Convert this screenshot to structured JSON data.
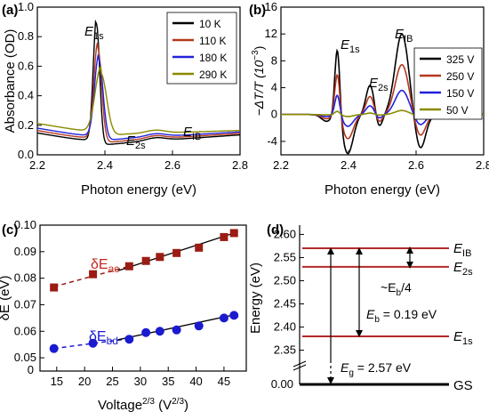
{
  "colors": {
    "c10K": "#000000",
    "c110K": "#b5381f",
    "c180K": "#2222dd",
    "c290K": "#8a8a00",
    "red": "#c2281c",
    "blue": "#1a1ad0",
    "darkred": "#9b1c14",
    "level": "#b32a2a"
  },
  "chart_data": [
    {
      "type": "line",
      "panel": "(a)",
      "xlabel": "Photon energy (eV)",
      "ylabel": "Absorbance (OD)",
      "xlim": [
        2.2,
        2.8
      ],
      "ylim": [
        0.0,
        1.0
      ],
      "xticks": [
        "2.2",
        "2.4",
        "2.6",
        "2.8"
      ],
      "yticks": [
        "0.0",
        "0.2",
        "0.4",
        "0.6",
        "0.8",
        "1.0"
      ],
      "legend_position": "top-right",
      "annotations": [
        {
          "main": "E",
          "sub": "1s"
        },
        {
          "main": "E",
          "sub": "2s"
        },
        {
          "main": "E",
          "sub": "IB"
        }
      ],
      "series": [
        {
          "name": "10 K",
          "peak": 0.95,
          "center": 2.375,
          "width": 0.0095,
          "low": 0.08,
          "high": 0.135
        },
        {
          "name": "110 K",
          "peak": 0.785,
          "center": 2.379,
          "width": 0.0115,
          "low": 0.095,
          "high": 0.145
        },
        {
          "name": "180 K",
          "peak": 0.705,
          "center": 2.382,
          "width": 0.0125,
          "low": 0.11,
          "high": 0.155
        },
        {
          "name": "290 K",
          "peak": 0.615,
          "center": 2.388,
          "width": 0.017,
          "low": 0.14,
          "high": 0.165
        }
      ]
    },
    {
      "type": "line",
      "panel": "(b)",
      "xlabel": "Photon energy (eV)",
      "ylabel_parts": [
        "−ΔT/T (10",
        "−3",
        ")"
      ],
      "xlim": [
        2.2,
        2.8
      ],
      "ylim": [
        -6,
        16
      ],
      "xticks": [
        "2.2",
        "2.4",
        "2.6",
        "2.8"
      ],
      "yticks": [
        "-4",
        "0",
        "4",
        "8",
        "12",
        "16"
      ],
      "legend_position": "top-right",
      "annotations": [
        {
          "main": "E",
          "sub": "1s"
        },
        {
          "main": "E",
          "sub": "2s"
        },
        {
          "main": "E",
          "sub": "IB"
        }
      ],
      "series": [
        {
          "name": "325 V",
          "scale": 1.0
        },
        {
          "name": "250 V",
          "scale": 0.62
        },
        {
          "name": "150 V",
          "scale": 0.3
        },
        {
          "name": "50 V",
          "scale": 0.05
        }
      ]
    },
    {
      "type": "scatter",
      "panel": "(c)",
      "xlabel_parts": [
        "Voltage",
        "2/3",
        " (V",
        "2/3",
        ")"
      ],
      "ylabel": "δE (eV)",
      "xlim": [
        12,
        49
      ],
      "ylim": [
        0.045,
        0.1
      ],
      "xticks": [
        "15",
        "20",
        "25",
        "30",
        "35",
        "40",
        "45"
      ],
      "yticks": [
        "0.05",
        "0.06",
        "0.07",
        "0.08",
        "0.09",
        "0.10"
      ],
      "y_origin_label": "0",
      "series": [
        {
          "name_main": "δE",
          "name_sub": "ac",
          "x": [
            14.5,
            21.5,
            28.0,
            31.0,
            33.5,
            36.5,
            40.5,
            45.0,
            46.8
          ],
          "y": [
            0.0765,
            0.0815,
            0.0845,
            0.0865,
            0.088,
            0.0895,
            0.0915,
            0.0955,
            0.097
          ]
        },
        {
          "name_main": "δE",
          "name_sub": "bd",
          "x": [
            14.5,
            21.5,
            28.0,
            31.0,
            33.5,
            36.5,
            40.5,
            45.0,
            46.8
          ],
          "y": [
            0.0535,
            0.0555,
            0.057,
            0.0595,
            0.06,
            0.0605,
            0.062,
            0.065,
            0.066
          ]
        }
      ]
    },
    {
      "type": "diagram",
      "panel": "(d)",
      "ylabel": "Energy (eV)",
      "ylim": [
        2.33,
        2.62
      ],
      "yticks": [
        "2.35",
        "2.40",
        "2.45",
        "2.50",
        "2.55",
        "2.60"
      ],
      "y_origin_label": "0.00",
      "levels": [
        {
          "energy": 2.57,
          "main": "E",
          "sub": "IB"
        },
        {
          "energy": 2.53,
          "main": "E",
          "sub": "2s"
        },
        {
          "energy": 2.38,
          "main": "E",
          "sub": "1s"
        }
      ],
      "ground_label": "GS",
      "annotations": {
        "eb4_main": "~E",
        "eb4_sub": "b",
        "eb4_tail": "/4",
        "eb_main": "E",
        "eb_sub": "b",
        "eb_tail": " = 0.19 eV",
        "eg_main": "E",
        "eg_sub": "g",
        "eg_tail": " = 2.57 eV"
      }
    }
  ]
}
